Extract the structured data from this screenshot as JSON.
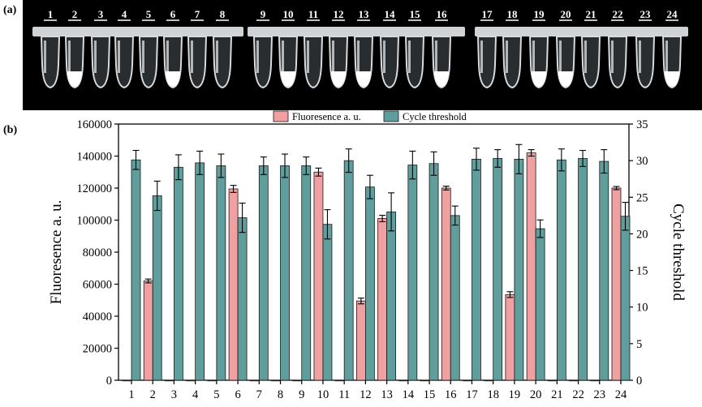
{
  "panel_a": {
    "label": "(a)",
    "tube_numbers": [
      "1",
      "2",
      "3",
      "4",
      "5",
      "6",
      "7",
      "8",
      "9",
      "10",
      "11",
      "12",
      "13",
      "14",
      "15",
      "16",
      "17",
      "18",
      "19",
      "20",
      "21",
      "22",
      "23",
      "24"
    ],
    "positive_tubes": [
      "2",
      "6",
      "10",
      "12",
      "13",
      "16",
      "19",
      "20",
      "24"
    ],
    "colors": {
      "background": "#000000",
      "tube": "#cfd3d6",
      "pellet": "#ffffff",
      "number": "#ffffff"
    }
  },
  "panel_b": {
    "label": "(b)"
  },
  "colors": {
    "fluorescence": "#f0a0a0",
    "cycle": "#5f9e9c",
    "stroke": "#1a1a1a"
  },
  "chart_data": {
    "type": "bar",
    "categories": [
      "1",
      "2",
      "3",
      "4",
      "5",
      "6",
      "7",
      "8",
      "9",
      "10",
      "11",
      "12",
      "13",
      "14",
      "15",
      "16",
      "17",
      "18",
      "19",
      "20",
      "21",
      "22",
      "23",
      "24"
    ],
    "legend_position": "top-center",
    "grid": false,
    "series": [
      {
        "name": "Fluoresence a. u.",
        "axis": "left",
        "values": [
          0,
          62000,
          0,
          0,
          0,
          119500,
          0,
          0,
          0,
          130000,
          0,
          49500,
          101000,
          0,
          0,
          120000,
          0,
          0,
          53500,
          142000,
          0,
          0,
          0,
          120000
        ],
        "errors": [
          0,
          1200,
          0,
          0,
          0,
          2200,
          0,
          0,
          0,
          2500,
          0,
          1800,
          2000,
          0,
          0,
          1200,
          0,
          0,
          1800,
          2000,
          0,
          0,
          0,
          1000
        ]
      },
      {
        "name": "Cycle threshold",
        "axis": "right",
        "values": [
          30.1,
          25.2,
          29.1,
          29.7,
          29.3,
          22.2,
          29.3,
          29.3,
          29.3,
          21.3,
          30.0,
          26.4,
          23.0,
          29.4,
          29.6,
          22.5,
          30.2,
          30.3,
          30.2,
          20.7,
          30.1,
          30.3,
          29.9,
          22.4
        ],
        "errors": [
          1.3,
          2.0,
          1.7,
          1.6,
          1.6,
          2.0,
          1.2,
          1.6,
          1.2,
          2.0,
          1.6,
          1.6,
          2.6,
          1.9,
          1.6,
          1.3,
          1.5,
          1.2,
          2.0,
          1.2,
          1.5,
          1.1,
          1.6,
          1.9
        ]
      }
    ],
    "y_left": {
      "label": "Fluoresence a. u.",
      "min": 0,
      "max": 160000,
      "ticks": [
        "0",
        "20000",
        "40000",
        "60000",
        "80000",
        "100000",
        "120000",
        "140000",
        "160000"
      ]
    },
    "y_right": {
      "label": "Cycle threshold",
      "min": 0,
      "max": 35,
      "ticks": [
        "0",
        "5",
        "10",
        "15",
        "20",
        "25",
        "30",
        "35"
      ]
    }
  }
}
